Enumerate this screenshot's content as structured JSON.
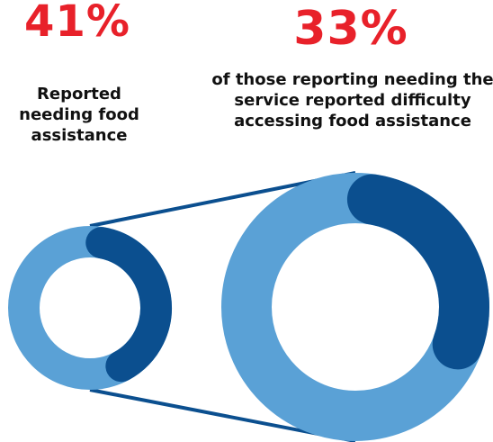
{
  "chart_data": {
    "type": "donut",
    "charts": [
      {
        "value": 41,
        "value_label": "41%",
        "caption": "Reported needing food assistance"
      },
      {
        "value": 33,
        "value_label": "33%",
        "caption": "of those reporting needing the service reported difficulty accessing food assistance"
      }
    ]
  },
  "colors": {
    "accent_text": "#e8212a",
    "ring_light": "#5aa1d6",
    "ring_dark": "#0b4f8f",
    "connector": "#0b4f8f",
    "caption_text": "#111111"
  }
}
